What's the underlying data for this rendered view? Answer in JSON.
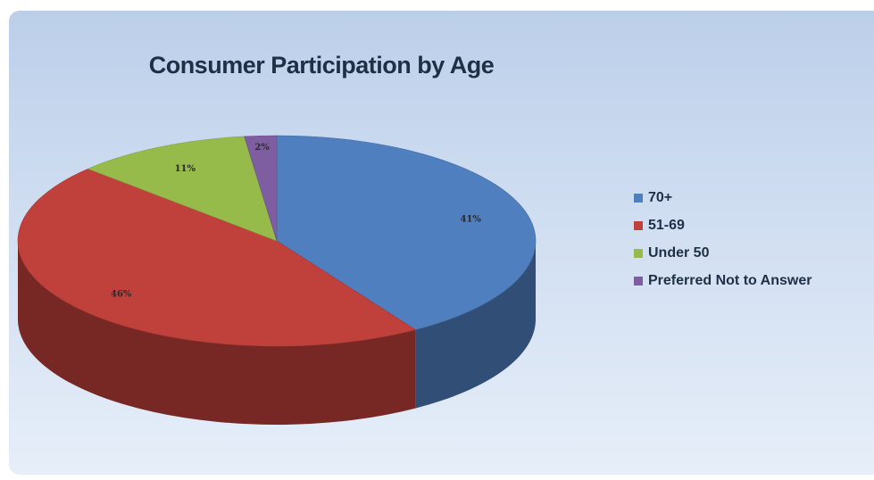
{
  "chart_data": {
    "type": "pie",
    "title": "Consumer Participation by Age",
    "legend_position": "right",
    "slices": [
      {
        "label": "70+",
        "value": 41,
        "display": "41%",
        "color": "#4f7fbf"
      },
      {
        "label": "51-69",
        "value": 46,
        "display": "46%",
        "color": "#c0413c"
      },
      {
        "label": "Under 50",
        "value": 11,
        "display": "11%",
        "color": "#97bb4b"
      },
      {
        "label": "Preferred Not to Answer",
        "value": 2,
        "display": "2%",
        "color": "#7e5ea0"
      }
    ]
  }
}
